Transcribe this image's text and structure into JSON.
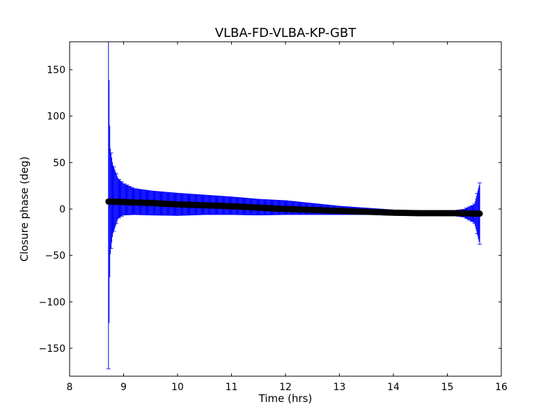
{
  "chart_data": {
    "type": "scatter",
    "title": "VLBA-FD-VLBA-KP-GBT",
    "xlabel": "Time (hrs)",
    "ylabel": "Closure phase (deg)",
    "xlim": [
      8,
      16
    ],
    "ylim": [
      -180,
      180
    ],
    "xticks": [
      8,
      9,
      10,
      11,
      12,
      13,
      14,
      15,
      16
    ],
    "yticks": [
      -150,
      -100,
      -50,
      0,
      50,
      100,
      150
    ],
    "xtick_labels": [
      "8",
      "9",
      "10",
      "11",
      "12",
      "13",
      "14",
      "15",
      "16"
    ],
    "ytick_labels": [
      "−150",
      "−100",
      "−50",
      "0",
      "50",
      "100",
      "150"
    ],
    "grid": false,
    "colors": {
      "errorbar": "#0000ff",
      "points": "#000000"
    },
    "series": [
      {
        "x": [
          8.72,
          8.75,
          8.8,
          8.9,
          9.0,
          9.2,
          9.5,
          10.0,
          10.5,
          11.0,
          11.5,
          12.0,
          12.5,
          13.0,
          13.5,
          14.0,
          14.5,
          15.0,
          15.3,
          15.5,
          15.6
        ],
        "y": [
          8,
          8,
          8,
          7.8,
          7.5,
          7,
          6.5,
          5,
          4,
          3,
          1.5,
          0,
          -1,
          -2,
          -3,
          -4,
          -4.5,
          -4.5,
          -4.5,
          -5,
          -5
        ],
        "err_upper": [
          180,
          60,
          40,
          25,
          20,
          15,
          13,
          12,
          11,
          10,
          9,
          9,
          7,
          5,
          4,
          3,
          2,
          2,
          4,
          10,
          33
        ],
        "err_lower": [
          180,
          60,
          35,
          18,
          14,
          13,
          13,
          12,
          10,
          9,
          8,
          6,
          5,
          4,
          3,
          2,
          2,
          2,
          4,
          10,
          33
        ]
      }
    ]
  }
}
